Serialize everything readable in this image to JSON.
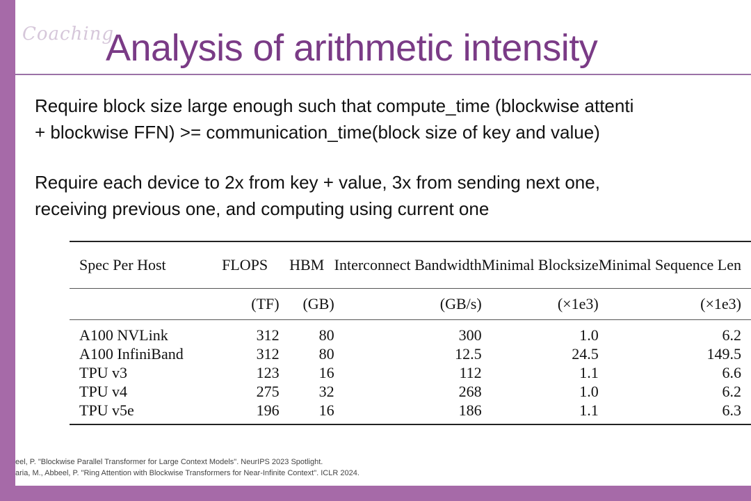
{
  "watermark": "Coaching",
  "title": "Analysis of arithmetic intensity",
  "body": {
    "line1": "Require block size large enough such that compute_time (blockwise attenti",
    "line2": "+  blockwise FFN) >= communication_time(block size of key and value)",
    "line3": "Require each device to 2x from key + value, 3x from sending next one,",
    "line4": "receiving previous one, and computing using current one"
  },
  "table": {
    "headers": [
      "Spec Per Host",
      "FLOPS",
      "HBM",
      "Interconnect Bandwidth",
      "Minimal Blocksize",
      "Minimal Sequence Len"
    ],
    "units": [
      "",
      "(TF)",
      "(GB)",
      "(GB/s)",
      "(×1e3)",
      "(×1e3)"
    ],
    "rows": [
      [
        "A100 NVLink",
        "312",
        "80",
        "300",
        "1.0",
        "6.2"
      ],
      [
        "A100 InfiniBand",
        "312",
        "80",
        "12.5",
        "24.5",
        "149.5"
      ],
      [
        "TPU v3",
        "123",
        "16",
        "112",
        "1.1",
        "6.6"
      ],
      [
        "TPU v4",
        "275",
        "32",
        "268",
        "1.0",
        "6.2"
      ],
      [
        "TPU v5e",
        "196",
        "16",
        "186",
        "1.1",
        "6.3"
      ]
    ]
  },
  "references": {
    "ref1": "eel, P. \"Blockwise Parallel Transformer for Large Context Models\". NeurIPS 2023 Spotlight.",
    "ref2": "aria, M., Abbeel, P. \"Ring Attention with Blockwise Transformers for Near-Infinite Context\". ICLR 2024."
  }
}
